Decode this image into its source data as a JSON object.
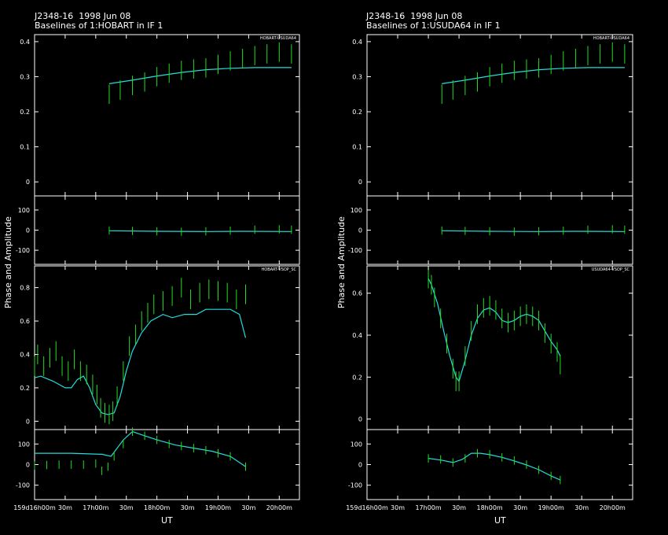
{
  "colors": {
    "frame": "#ffffff",
    "data": "#22dd22",
    "model": "#22dddd",
    "flag": "#ff2222"
  },
  "left_title": {
    "source": "J2348-16  1998 Jun 08",
    "subtitle": "Baselines of 1:HOBART in IF 1"
  },
  "right_title": {
    "source": "J2348-16  1998 Jun 08",
    "subtitle": "Baselines of 1:USUDA64 in IF 1"
  },
  "left_ylabel": "Phase and Amplitude",
  "right_ylabel": "Phase and Amplitude",
  "left_xlabel": "UT",
  "right_xlabel": "UT",
  "chart_data": [
    {
      "type": "line",
      "panel": "left",
      "baseline": "HOBART-USUDA64",
      "xlim_hours": [
        16.0,
        20.33
      ],
      "x_ticks": [
        "159d16h00m",
        "30m",
        "17h00m",
        "30m",
        "18h00m",
        "30m",
        "19h00m",
        "30m",
        "20h00m"
      ],
      "amplitude": {
        "ylim": [
          -0.04,
          0.42
        ],
        "ticks": [
          "0",
          "0.1",
          "0.2",
          "0.3",
          "0.4"
        ],
        "data": [
          [
            17.22,
            0.25
          ],
          [
            17.4,
            0.262
          ],
          [
            17.6,
            0.275
          ],
          [
            17.8,
            0.285
          ],
          [
            18.0,
            0.3
          ],
          [
            18.2,
            0.31
          ],
          [
            18.4,
            0.318
          ],
          [
            18.6,
            0.322
          ],
          [
            18.8,
            0.325
          ],
          [
            19.0,
            0.335
          ],
          [
            19.2,
            0.345
          ],
          [
            19.4,
            0.352
          ],
          [
            19.6,
            0.36
          ],
          [
            19.8,
            0.365
          ],
          [
            20.0,
            0.37
          ],
          [
            20.2,
            0.365
          ]
        ],
        "model": [
          [
            17.22,
            0.28
          ],
          [
            17.6,
            0.29
          ],
          [
            18.0,
            0.302
          ],
          [
            18.4,
            0.312
          ],
          [
            18.8,
            0.32
          ],
          [
            19.2,
            0.324
          ],
          [
            19.6,
            0.326
          ],
          [
            20.0,
            0.326
          ],
          [
            20.2,
            0.326
          ]
        ]
      },
      "phase": {
        "ylim": [
          -170,
          170
        ],
        "ticks": [
          "-100",
          "0",
          "100"
        ],
        "data": [
          [
            17.22,
            -2
          ],
          [
            17.6,
            -4
          ],
          [
            18.0,
            -6
          ],
          [
            18.4,
            -8
          ],
          [
            18.8,
            -6
          ],
          [
            19.2,
            -3
          ],
          [
            19.6,
            2
          ],
          [
            20.0,
            4
          ],
          [
            20.2,
            2
          ]
        ],
        "model": [
          [
            17.22,
            -3
          ],
          [
            18.0,
            -6
          ],
          [
            18.8,
            -7
          ],
          [
            19.4,
            -6
          ],
          [
            20.2,
            -7
          ]
        ]
      }
    },
    {
      "type": "line",
      "panel": "left",
      "baseline": "HOBART-VSOP_SC",
      "xlim_hours": [
        16.0,
        20.33
      ],
      "x_ticks": [
        "159d16h00m",
        "30m",
        "17h00m",
        "30m",
        "18h00m",
        "30m",
        "19h00m",
        "30m",
        "20h00m"
      ],
      "amplitude": {
        "ylim": [
          -0.05,
          0.93
        ],
        "ticks": [
          "0",
          "0.2",
          "0.4",
          "0.6",
          "0.8"
        ],
        "data": [
          [
            16.0,
            0.33
          ],
          [
            16.05,
            0.4
          ],
          [
            16.15,
            0.33
          ],
          [
            16.25,
            0.38
          ],
          [
            16.35,
            0.42
          ],
          [
            16.45,
            0.33
          ],
          [
            16.55,
            0.3
          ],
          [
            16.65,
            0.37
          ],
          [
            16.75,
            0.3
          ],
          [
            16.85,
            0.28
          ],
          [
            16.95,
            0.22
          ],
          [
            17.02,
            0.16
          ],
          [
            17.08,
            0.08
          ],
          [
            17.15,
            0.05
          ],
          [
            17.22,
            0.04
          ],
          [
            17.28,
            0.06
          ],
          [
            17.35,
            0.15
          ],
          [
            17.45,
            0.3
          ],
          [
            17.55,
            0.45
          ],
          [
            17.65,
            0.52
          ],
          [
            17.75,
            0.6
          ],
          [
            17.85,
            0.65
          ],
          [
            17.95,
            0.7
          ],
          [
            18.1,
            0.72
          ],
          [
            18.25,
            0.75
          ],
          [
            18.4,
            0.8
          ],
          [
            18.55,
            0.73
          ],
          [
            18.7,
            0.77
          ],
          [
            18.85,
            0.79
          ],
          [
            19.0,
            0.78
          ],
          [
            19.15,
            0.77
          ],
          [
            19.3,
            0.73
          ],
          [
            19.45,
            0.76
          ]
        ],
        "model": [
          [
            16.0,
            0.26
          ],
          [
            16.1,
            0.27
          ],
          [
            16.3,
            0.24
          ],
          [
            16.5,
            0.2
          ],
          [
            16.6,
            0.2
          ],
          [
            16.7,
            0.25
          ],
          [
            16.8,
            0.27
          ],
          [
            16.9,
            0.2
          ],
          [
            17.0,
            0.1
          ],
          [
            17.1,
            0.05
          ],
          [
            17.2,
            0.04
          ],
          [
            17.3,
            0.05
          ],
          [
            17.4,
            0.15
          ],
          [
            17.5,
            0.3
          ],
          [
            17.6,
            0.42
          ],
          [
            17.75,
            0.53
          ],
          [
            17.9,
            0.6
          ],
          [
            18.1,
            0.64
          ],
          [
            18.25,
            0.62
          ],
          [
            18.45,
            0.64
          ],
          [
            18.65,
            0.64
          ],
          [
            18.8,
            0.67
          ],
          [
            19.0,
            0.67
          ],
          [
            19.2,
            0.67
          ],
          [
            19.35,
            0.64
          ],
          [
            19.45,
            0.5
          ]
        ]
      },
      "phase": {
        "ylim": [
          -170,
          170
        ],
        "ticks": [
          "-100",
          "0",
          "100"
        ],
        "data": [
          [
            16.0,
            -5
          ],
          [
            16.2,
            -2
          ],
          [
            16.4,
            0
          ],
          [
            16.6,
            0
          ],
          [
            16.8,
            0
          ],
          [
            17.0,
            5
          ],
          [
            17.1,
            -30
          ],
          [
            17.2,
            -10
          ],
          [
            17.3,
            40
          ],
          [
            17.45,
            100
          ],
          [
            17.6,
            160
          ],
          [
            17.8,
            140
          ],
          [
            18.0,
            120
          ],
          [
            18.2,
            100
          ],
          [
            18.4,
            90
          ],
          [
            18.6,
            80
          ],
          [
            18.8,
            70
          ],
          [
            19.0,
            55
          ],
          [
            19.2,
            40
          ],
          [
            19.45,
            -10
          ]
        ],
        "model": [
          [
            16.0,
            55
          ],
          [
            16.2,
            55
          ],
          [
            16.6,
            55
          ],
          [
            17.1,
            50
          ],
          [
            17.25,
            40
          ],
          [
            17.45,
            120
          ],
          [
            17.6,
            160
          ],
          [
            17.8,
            140
          ],
          [
            18.0,
            120
          ],
          [
            18.3,
            95
          ],
          [
            18.6,
            80
          ],
          [
            18.9,
            65
          ],
          [
            19.2,
            40
          ],
          [
            19.45,
            -10
          ]
        ]
      }
    },
    {
      "type": "line",
      "panel": "right",
      "baseline": "HOBART-USUDA64",
      "xlim_hours": [
        16.0,
        20.33
      ],
      "x_ticks": [
        "159d16h00m",
        "30m",
        "17h00m",
        "30m",
        "18h00m",
        "30m",
        "19h00m",
        "30m",
        "20h00m"
      ],
      "amplitude": {
        "ylim": [
          -0.04,
          0.42
        ],
        "ticks": [
          "0",
          "0.1",
          "0.2",
          "0.3",
          "0.4"
        ],
        "data": [
          [
            17.22,
            0.25
          ],
          [
            17.4,
            0.262
          ],
          [
            17.6,
            0.275
          ],
          [
            17.8,
            0.285
          ],
          [
            18.0,
            0.3
          ],
          [
            18.2,
            0.31
          ],
          [
            18.4,
            0.318
          ],
          [
            18.6,
            0.322
          ],
          [
            18.8,
            0.325
          ],
          [
            19.0,
            0.335
          ],
          [
            19.2,
            0.345
          ],
          [
            19.4,
            0.352
          ],
          [
            19.6,
            0.36
          ],
          [
            19.8,
            0.365
          ],
          [
            20.0,
            0.37
          ],
          [
            20.2,
            0.365
          ]
        ],
        "model": [
          [
            17.22,
            0.28
          ],
          [
            17.6,
            0.29
          ],
          [
            18.0,
            0.302
          ],
          [
            18.4,
            0.312
          ],
          [
            18.8,
            0.32
          ],
          [
            19.2,
            0.324
          ],
          [
            19.6,
            0.326
          ],
          [
            20.0,
            0.326
          ],
          [
            20.2,
            0.326
          ]
        ]
      },
      "phase": {
        "ylim": [
          -170,
          170
        ],
        "ticks": [
          "-100",
          "0",
          "100"
        ],
        "data": [
          [
            17.22,
            -2
          ],
          [
            17.6,
            -4
          ],
          [
            18.0,
            -6
          ],
          [
            18.4,
            -8
          ],
          [
            18.8,
            -6
          ],
          [
            19.2,
            -3
          ],
          [
            19.6,
            2
          ],
          [
            20.0,
            4
          ],
          [
            20.2,
            2
          ]
        ],
        "model": [
          [
            17.22,
            -3
          ],
          [
            18.0,
            -6
          ],
          [
            18.8,
            -7
          ],
          [
            19.4,
            -6
          ],
          [
            20.2,
            -7
          ]
        ]
      }
    },
    {
      "type": "line",
      "panel": "right",
      "baseline": "USUDA64-VSOP_SC",
      "xlim_hours": [
        16.0,
        20.33
      ],
      "x_ticks": [
        "159d16h00m",
        "30m",
        "17h00m",
        "30m",
        "18h00m",
        "30m",
        "19h00m",
        "30m",
        "20h00m"
      ],
      "amplitude": {
        "ylim": [
          -0.05,
          0.73
        ],
        "ticks": [
          "0",
          "0.2",
          "0.4",
          "0.6"
        ],
        "data": [
          [
            17.0,
            0.67
          ],
          [
            17.05,
            0.64
          ],
          [
            17.1,
            0.58
          ],
          [
            17.2,
            0.48
          ],
          [
            17.3,
            0.36
          ],
          [
            17.4,
            0.24
          ],
          [
            17.45,
            0.18
          ],
          [
            17.5,
            0.18
          ],
          [
            17.6,
            0.3
          ],
          [
            17.7,
            0.42
          ],
          [
            17.8,
            0.5
          ],
          [
            17.9,
            0.53
          ],
          [
            18.0,
            0.54
          ],
          [
            18.1,
            0.52
          ],
          [
            18.2,
            0.48
          ],
          [
            18.3,
            0.46
          ],
          [
            18.4,
            0.47
          ],
          [
            18.5,
            0.49
          ],
          [
            18.6,
            0.5
          ],
          [
            18.7,
            0.49
          ],
          [
            18.8,
            0.47
          ],
          [
            18.9,
            0.41
          ],
          [
            19.0,
            0.36
          ],
          [
            19.1,
            0.32
          ],
          [
            19.15,
            0.26
          ]
        ],
        "model": [
          [
            17.0,
            0.67
          ],
          [
            17.05,
            0.64
          ],
          [
            17.15,
            0.55
          ],
          [
            17.25,
            0.42
          ],
          [
            17.35,
            0.3
          ],
          [
            17.45,
            0.2
          ],
          [
            17.5,
            0.18
          ],
          [
            17.6,
            0.28
          ],
          [
            17.7,
            0.4
          ],
          [
            17.8,
            0.48
          ],
          [
            17.9,
            0.52
          ],
          [
            18.0,
            0.53
          ],
          [
            18.1,
            0.51
          ],
          [
            18.2,
            0.47
          ],
          [
            18.3,
            0.46
          ],
          [
            18.4,
            0.47
          ],
          [
            18.5,
            0.49
          ],
          [
            18.6,
            0.5
          ],
          [
            18.7,
            0.49
          ],
          [
            18.8,
            0.47
          ],
          [
            18.9,
            0.42
          ],
          [
            19.0,
            0.37
          ],
          [
            19.1,
            0.33
          ],
          [
            19.15,
            0.3
          ]
        ]
      },
      "phase": {
        "ylim": [
          -170,
          170
        ],
        "ticks": [
          "-100",
          "0",
          "100"
        ],
        "data": [
          [
            17.0,
            30
          ],
          [
            17.2,
            25
          ],
          [
            17.4,
            10
          ],
          [
            17.6,
            30
          ],
          [
            17.8,
            55
          ],
          [
            18.0,
            50
          ],
          [
            18.2,
            35
          ],
          [
            18.4,
            20
          ],
          [
            18.6,
            0
          ],
          [
            18.8,
            -25
          ],
          [
            19.0,
            -55
          ],
          [
            19.15,
            -75
          ]
        ],
        "model": [
          [
            17.0,
            30
          ],
          [
            17.2,
            22
          ],
          [
            17.4,
            10
          ],
          [
            17.55,
            25
          ],
          [
            17.7,
            55
          ],
          [
            17.85,
            55
          ],
          [
            18.0,
            48
          ],
          [
            18.2,
            35
          ],
          [
            18.4,
            18
          ],
          [
            18.6,
            -2
          ],
          [
            18.8,
            -25
          ],
          [
            19.0,
            -55
          ],
          [
            19.15,
            -75
          ]
        ]
      }
    }
  ]
}
